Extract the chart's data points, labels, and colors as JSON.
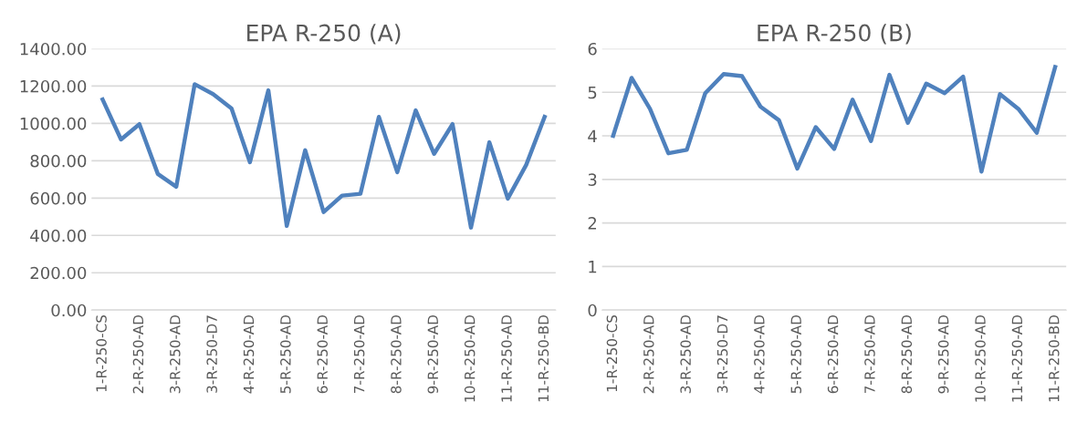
{
  "chart_data": [
    {
      "type": "line",
      "title": "EPA R-250 (A)",
      "categories": [
        "1-R-250-CS",
        null,
        "2-R-250-AD",
        null,
        "3-R-250-AD",
        null,
        "3-R-250-D7",
        null,
        "4-R-250-AD",
        null,
        "5-R-250-AD",
        null,
        "6-R-250-AD",
        null,
        "7-R-250-AD",
        null,
        "8-R-250-AD",
        null,
        "9-R-250-AD",
        null,
        "10-R-250-AD",
        null,
        "11-R-250-AD",
        null,
        "11-R-250-BD"
      ],
      "series": [
        {
          "color": "#4f81bd",
          "values": [
            1128,
            914,
            996,
            729,
            661,
            1210,
            1157,
            1080,
            792,
            1177,
            451,
            856,
            525,
            613,
            623,
            1035,
            739,
            1070,
            837,
            996,
            442,
            899,
            597,
            778,
            1035
          ]
        }
      ],
      "ylim": [
        0,
        1400
      ],
      "yticks": [
        {
          "value": 0,
          "label": "0.00"
        },
        {
          "value": 200,
          "label": "200.00"
        },
        {
          "value": 400,
          "label": "400.00"
        },
        {
          "value": 600,
          "label": "600.00"
        },
        {
          "value": 800,
          "label": "800.00"
        },
        {
          "value": 1000,
          "label": "1000.00"
        },
        {
          "value": 1200,
          "label": "1200.00"
        },
        {
          "value": 1400,
          "label": "1400.00"
        }
      ],
      "grid": "y",
      "marker": "none",
      "line_style": "solid"
    },
    {
      "type": "line",
      "title": "EPA R-250 (B)",
      "categories": [
        "1-R-250-CS",
        null,
        "2-R-250-AD",
        null,
        "3-R-250-AD",
        null,
        "3-R-250-D7",
        null,
        "4-R-250-AD",
        null,
        "5-R-250-AD",
        null,
        "6-R-250-AD",
        null,
        "7-R-250-AD",
        null,
        "8-R-250-AD",
        null,
        "9-R-250-AD",
        null,
        "10-R-250-AD",
        null,
        "11-R-250-AD",
        null,
        "11-R-250-BD"
      ],
      "series": [
        {
          "color": "#4f81bd",
          "values": [
            4.0,
            5.33,
            4.62,
            3.6,
            3.68,
            4.98,
            5.42,
            5.37,
            4.67,
            4.36,
            3.25,
            4.2,
            3.7,
            4.83,
            3.88,
            5.4,
            4.3,
            5.2,
            4.98,
            5.36,
            3.18,
            4.96,
            4.62,
            4.07,
            5.58
          ]
        }
      ],
      "ylim": [
        0,
        6
      ],
      "yticks": [
        0,
        1,
        2,
        3,
        4,
        5,
        6
      ],
      "grid": "y",
      "marker": "none",
      "line_style": "solid"
    }
  ]
}
